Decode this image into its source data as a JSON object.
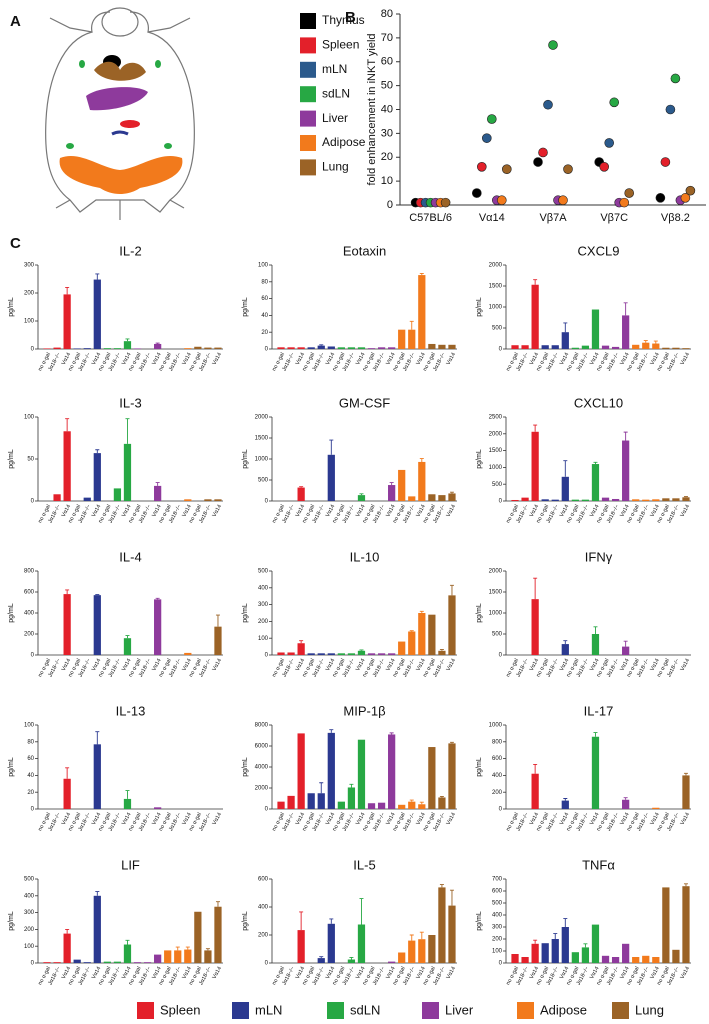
{
  "panel_labels": [
    "A",
    "B",
    "C"
  ],
  "legend": [
    {
      "name": "Spleen",
      "color": "#e3202a"
    },
    {
      "name": "mLN",
      "color": "#2b3990"
    },
    {
      "name": "sdLN",
      "color": "#27a844"
    },
    {
      "name": "Liver",
      "color": "#8e3a9c"
    },
    {
      "name": "Adipose",
      "color": "#f27a1c"
    },
    {
      "name": "Lung",
      "color": "#9b6326"
    }
  ],
  "chart_data": [
    {
      "type": "dot",
      "ylabel": "fold enhancement in iNKT yield",
      "categories": [
        "C57BL/6",
        "Vα14",
        "Vβ7A",
        "Vβ7C",
        "Vβ8.2"
      ],
      "ylim": [
        0,
        80
      ],
      "yticks": [
        0,
        10,
        20,
        30,
        40,
        50,
        60,
        70,
        80
      ],
      "series": [
        {
          "name": "Thymus",
          "color": "#000000",
          "values": [
            1,
            5,
            18,
            18,
            3
          ]
        },
        {
          "name": "Spleen",
          "color": "#e3202a",
          "values": [
            1,
            16,
            22,
            16,
            18
          ]
        },
        {
          "name": "mLN",
          "color": "#2b5a8c",
          "values": [
            1,
            28,
            42,
            26,
            40
          ]
        },
        {
          "name": "sdLN",
          "color": "#27a844",
          "values": [
            1,
            36,
            67,
            43,
            53
          ]
        },
        {
          "name": "Liver",
          "color": "#8e3a9c",
          "values": [
            1,
            2,
            2,
            1,
            2
          ]
        },
        {
          "name": "Adipose",
          "color": "#f27a1c",
          "values": [
            1,
            2,
            2,
            1,
            3
          ]
        },
        {
          "name": "Lung",
          "color": "#9b6326",
          "values": [
            1,
            15,
            15,
            5,
            6
          ]
        }
      ]
    },
    {
      "type": "bar",
      "title": "IL-2",
      "ylabel": "pg/mL",
      "ylim": [
        0,
        300
      ],
      "yticks": [
        0,
        100,
        200,
        300
      ],
      "categories": [
        "no α-gal",
        "Jα18−/−",
        "Vα14",
        "no α-gal",
        "Jα18−/−",
        "Vα14",
        "no α-gal",
        "Jα18−/−",
        "Vα14",
        "no α-gal",
        "Jα18−/−",
        "Vα14",
        "no α-gal",
        "Jα18−/−",
        "Vα14",
        "no α-gal",
        "Jα18−/−",
        "Vα14"
      ],
      "values": [
        2,
        5,
        195,
        2,
        3,
        248,
        3,
        3,
        28,
        2,
        0,
        18,
        0,
        0,
        3,
        8,
        5,
        5
      ],
      "errors": [
        0,
        0,
        25,
        0,
        0,
        20,
        0,
        0,
        8,
        0,
        0,
        3,
        0,
        0,
        0,
        0,
        0,
        0
      ]
    },
    {
      "type": "bar",
      "title": "Eotaxin",
      "ylabel": "pg/mL",
      "ylim": [
        0,
        100
      ],
      "yticks": [
        0,
        20,
        40,
        60,
        80,
        100
      ],
      "categories": [
        "no α-gal",
        "Jα18−/−",
        "Vα14",
        "no α-gal",
        "Jα18−/−",
        "Vα14",
        "no α-gal",
        "Jα18−/−",
        "Vα14",
        "no α-gal",
        "Jα18−/−",
        "Vα14",
        "no α-gal",
        "Jα18−/−",
        "Vα14",
        "no α-gal",
        "Jα18−/−",
        "Vα14"
      ],
      "values": [
        2,
        2,
        2,
        2,
        4,
        3,
        2,
        2,
        2,
        1,
        2,
        2,
        23,
        23,
        88,
        6,
        5,
        5
      ],
      "errors": [
        0,
        0,
        0,
        0,
        1,
        0,
        0,
        0,
        0,
        0,
        0,
        0,
        0,
        10,
        2,
        0,
        0,
        0
      ]
    },
    {
      "type": "bar",
      "title": "CXCL9",
      "ylabel": "pg/mL",
      "ylim": [
        0,
        2000
      ],
      "yticks": [
        0,
        500,
        1000,
        1500,
        2000
      ],
      "categories": [
        "no α-gal",
        "Jα18−/−",
        "Vα14",
        "no α-gal",
        "Jα18−/−",
        "Vα14",
        "no α-gal",
        "Jα18−/−",
        "Vα14",
        "no α-gal",
        "Jα18−/−",
        "Vα14",
        "no α-gal",
        "Jα18−/−",
        "Vα14",
        "no α-gal",
        "Jα18−/−",
        "Vα14"
      ],
      "values": [
        90,
        90,
        1530,
        90,
        90,
        400,
        30,
        80,
        940,
        80,
        50,
        800,
        100,
        150,
        130,
        30,
        30,
        20
      ],
      "errors": [
        0,
        0,
        120,
        0,
        0,
        220,
        0,
        0,
        0,
        0,
        0,
        300,
        0,
        50,
        60,
        0,
        0,
        0
      ]
    },
    {
      "type": "bar",
      "title": "IL-3",
      "ylabel": "pg/mL",
      "ylim": [
        0,
        100
      ],
      "yticks": [
        0,
        50,
        100
      ],
      "categories": [
        "no α-gal",
        "Jα18−/−",
        "Vα14",
        "no α-gal",
        "Jα18−/−",
        "Vα14",
        "no α-gal",
        "Jα18−/−",
        "Vα14",
        "no α-gal",
        "Jα18−/−",
        "Vα14",
        "no α-gal",
        "Jα18−/−",
        "Vα14",
        "no α-gal",
        "Jα18−/−",
        "Vα14"
      ],
      "values": [
        0,
        8,
        83,
        0,
        4,
        57,
        0,
        15,
        68,
        0,
        0,
        18,
        0,
        0,
        2,
        0,
        2,
        2
      ],
      "errors": [
        0,
        0,
        15,
        0,
        0,
        4,
        0,
        0,
        30,
        0,
        0,
        4,
        0,
        0,
        0,
        0,
        0,
        0
      ]
    },
    {
      "type": "bar",
      "title": "GM-CSF",
      "ylabel": "pg/mL",
      "ylim": [
        0,
        2000
      ],
      "yticks": [
        0,
        500,
        1000,
        1500,
        2000
      ],
      "categories": [
        "no α-gal",
        "Jα18−/−",
        "Vα14",
        "no α-gal",
        "Jα18−/−",
        "Vα14",
        "no α-gal",
        "Jα18−/−",
        "Vα14",
        "no α-gal",
        "Jα18−/−",
        "Vα14",
        "no α-gal",
        "Jα18−/−",
        "Vα14",
        "no α-gal",
        "Jα18−/−",
        "Vα14"
      ],
      "values": [
        0,
        0,
        320,
        0,
        0,
        1100,
        0,
        0,
        140,
        0,
        0,
        380,
        740,
        110,
        930,
        160,
        140,
        180
      ],
      "errors": [
        0,
        0,
        20,
        0,
        0,
        350,
        0,
        0,
        30,
        0,
        0,
        60,
        0,
        0,
        80,
        0,
        0,
        30
      ]
    },
    {
      "type": "bar",
      "title": "CXCL10",
      "ylabel": "pg/mL",
      "ylim": [
        0,
        2500
      ],
      "yticks": [
        0,
        500,
        1000,
        1500,
        2000,
        2500
      ],
      "categories": [
        "no α-gal",
        "Jα18−/−",
        "Vα14",
        "no α-gal",
        "Jα18−/−",
        "Vα14",
        "no α-gal",
        "Jα18−/−",
        "Vα14",
        "no α-gal",
        "Jα18−/−",
        "Vα14",
        "no α-gal",
        "Jα18−/−",
        "Vα14",
        "no α-gal",
        "Jα18−/−",
        "Vα14"
      ],
      "values": [
        30,
        100,
        2060,
        50,
        40,
        720,
        40,
        40,
        1100,
        100,
        60,
        1800,
        50,
        40,
        50,
        80,
        80,
        110
      ],
      "errors": [
        0,
        0,
        200,
        0,
        0,
        480,
        0,
        0,
        50,
        0,
        0,
        250,
        0,
        0,
        0,
        0,
        0,
        20
      ]
    },
    {
      "type": "bar",
      "title": "IL-4",
      "ylabel": "pg/mL",
      "ylim": [
        0,
        800
      ],
      "yticks": [
        0,
        200,
        400,
        600,
        800
      ],
      "categories": [
        "no α-gal",
        "Jα18−/−",
        "Vα14",
        "no α-gal",
        "Jα18−/−",
        "Vα14",
        "no α-gal",
        "Jα18−/−",
        "Vα14",
        "no α-gal",
        "Jα18−/−",
        "Vα14",
        "no α-gal",
        "Jα18−/−",
        "Vα14",
        "no α-gal",
        "Jα18−/−",
        "Vα14"
      ],
      "values": [
        0,
        0,
        580,
        0,
        0,
        570,
        0,
        0,
        160,
        0,
        0,
        530,
        0,
        0,
        20,
        0,
        0,
        270
      ],
      "errors": [
        0,
        0,
        40,
        0,
        0,
        5,
        0,
        0,
        25,
        0,
        0,
        10,
        0,
        0,
        0,
        0,
        0,
        110
      ]
    },
    {
      "type": "bar",
      "title": "IL-10",
      "ylabel": "pg/mL",
      "ylim": [
        0,
        500
      ],
      "yticks": [
        0,
        100,
        200,
        300,
        400,
        500
      ],
      "categories": [
        "no α-gal",
        "Jα18−/−",
        "Vα14",
        "no α-gal",
        "Jα18−/−",
        "Vα14",
        "no α-gal",
        "Jα18−/−",
        "Vα14",
        "no α-gal",
        "Jα18−/−",
        "Vα14",
        "no α-gal",
        "Jα18−/−",
        "Vα14",
        "no α-gal",
        "Jα18−/−",
        "Vα14"
      ],
      "values": [
        15,
        15,
        70,
        10,
        10,
        10,
        10,
        10,
        25,
        10,
        10,
        10,
        80,
        140,
        250,
        240,
        25,
        355
      ],
      "errors": [
        0,
        0,
        15,
        0,
        0,
        0,
        0,
        0,
        5,
        0,
        0,
        0,
        0,
        5,
        10,
        0,
        8,
        60
      ]
    },
    {
      "type": "bar",
      "title": "IFNγ",
      "ylabel": "pg/mL",
      "ylim": [
        0,
        2000
      ],
      "yticks": [
        0,
        500,
        1000,
        1500,
        2000
      ],
      "categories": [
        "no α-gal",
        "Jα18−/−",
        "Vα14",
        "no α-gal",
        "Jα18−/−",
        "Vα14",
        "no α-gal",
        "Jα18−/−",
        "Vα14",
        "no α-gal",
        "Jα18−/−",
        "Vα14",
        "no α-gal",
        "Jα18−/−",
        "Vα14",
        "no α-gal",
        "Jα18−/−",
        "Vα14"
      ],
      "values": [
        0,
        0,
        1330,
        0,
        0,
        260,
        0,
        0,
        500,
        0,
        0,
        200,
        0,
        0,
        0,
        0,
        0,
        0
      ],
      "errors": [
        0,
        0,
        500,
        0,
        0,
        80,
        0,
        0,
        170,
        0,
        0,
        130,
        0,
        0,
        0,
        0,
        0,
        0
      ]
    },
    {
      "type": "bar",
      "title": "IL-13",
      "ylabel": "pg/mL",
      "ylim": [
        0,
        100
      ],
      "yticks": [
        0,
        20,
        40,
        60,
        80,
        100
      ],
      "categories": [
        "no α-gal",
        "Jα18−/−",
        "Vα14",
        "no α-gal",
        "Jα18−/−",
        "Vα14",
        "no α-gal",
        "Jα18−/−",
        "Vα14",
        "no α-gal",
        "Jα18−/−",
        "Vα14",
        "no α-gal",
        "Jα18−/−",
        "Vα14",
        "no α-gal",
        "Jα18−/−",
        "Vα14"
      ],
      "values": [
        0,
        0,
        36,
        0,
        0,
        77,
        0,
        0,
        12,
        0,
        0,
        2,
        0,
        0,
        0,
        0,
        0,
        0
      ],
      "errors": [
        0,
        0,
        13,
        0,
        0,
        15,
        0,
        0,
        10,
        0,
        0,
        0,
        0,
        0,
        0,
        0,
        0,
        0
      ]
    },
    {
      "type": "bar",
      "title": "MIP-1β",
      "ylabel": "pg/mL",
      "ylim": [
        0,
        8000
      ],
      "yticks": [
        0,
        2000,
        4000,
        6000,
        8000
      ],
      "categories": [
        "no α-gal",
        "Jα18−/−",
        "Vα14",
        "no α-gal",
        "Jα18−/−",
        "Vα14",
        "no α-gal",
        "Jα18−/−",
        "Vα14",
        "no α-gal",
        "Jα18−/−",
        "Vα14",
        "no α-gal",
        "Jα18−/−",
        "Vα14",
        "no α-gal",
        "Jα18−/−",
        "Vα14"
      ],
      "values": [
        700,
        1250,
        7200,
        1500,
        1500,
        7250,
        700,
        2050,
        6600,
        550,
        600,
        7100,
        400,
        700,
        450,
        5900,
        1100,
        6250
      ],
      "errors": [
        0,
        0,
        0,
        0,
        1000,
        300,
        0,
        300,
        0,
        0,
        0,
        150,
        0,
        150,
        200,
        0,
        100,
        100
      ]
    },
    {
      "type": "bar",
      "title": "IL-17",
      "ylabel": "pg/mL",
      "ylim": [
        0,
        1000
      ],
      "yticks": [
        0,
        200,
        400,
        600,
        800,
        1000
      ],
      "categories": [
        "no α-gal",
        "Jα18−/−",
        "Vα14",
        "no α-gal",
        "Jα18−/−",
        "Vα14",
        "no α-gal",
        "Jα18−/−",
        "Vα14",
        "no α-gal",
        "Jα18−/−",
        "Vα14",
        "no α-gal",
        "Jα18−/−",
        "Vα14",
        "no α-gal",
        "Jα18−/−",
        "Vα14"
      ],
      "values": [
        0,
        0,
        420,
        0,
        0,
        100,
        0,
        0,
        860,
        0,
        0,
        110,
        0,
        0,
        15,
        0,
        0,
        400
      ],
      "errors": [
        0,
        0,
        110,
        0,
        0,
        25,
        0,
        0,
        50,
        0,
        0,
        25,
        0,
        0,
        0,
        0,
        0,
        25
      ]
    },
    {
      "type": "bar",
      "title": "LIF",
      "ylabel": "pg/mL",
      "ylim": [
        0,
        500
      ],
      "yticks": [
        0,
        100,
        200,
        300,
        400,
        500
      ],
      "categories": [
        "no α-gal",
        "Jα18−/−",
        "Vα14",
        "no α-gal",
        "Jα18−/−",
        "Vα14",
        "no α-gal",
        "Jα18−/−",
        "Vα14",
        "no α-gal",
        "Jα18−/−",
        "Vα14",
        "no α-gal",
        "Jα18−/−",
        "Vα14",
        "no α-gal",
        "Jα18−/−",
        "Vα14"
      ],
      "values": [
        5,
        5,
        175,
        20,
        5,
        400,
        8,
        8,
        110,
        5,
        5,
        50,
        75,
        75,
        80,
        305,
        75,
        335
      ],
      "errors": [
        0,
        0,
        25,
        0,
        0,
        25,
        0,
        0,
        25,
        0,
        0,
        0,
        0,
        20,
        15,
        0,
        10,
        30
      ]
    },
    {
      "type": "bar",
      "title": "IL-5",
      "ylabel": "pg/mL",
      "ylim": [
        0,
        600
      ],
      "yticks": [
        0,
        200,
        400,
        600
      ],
      "categories": [
        "no α-gal",
        "Jα18−/−",
        "Vα14",
        "no α-gal",
        "Jα18−/−",
        "Vα14",
        "no α-gal",
        "Jα18−/−",
        "Vα14",
        "no α-gal",
        "Jα18−/−",
        "Vα14",
        "no α-gal",
        "Jα18−/−",
        "Vα14",
        "no α-gal",
        "Jα18−/−",
        "Vα14"
      ],
      "values": [
        0,
        0,
        235,
        0,
        35,
        280,
        0,
        25,
        275,
        0,
        0,
        10,
        75,
        160,
        170,
        200,
        540,
        410
      ],
      "errors": [
        0,
        0,
        130,
        0,
        10,
        35,
        0,
        15,
        185,
        0,
        0,
        0,
        0,
        40,
        50,
        0,
        20,
        110
      ]
    },
    {
      "type": "bar",
      "title": "TNFα",
      "ylabel": "pg/mL",
      "ylim": [
        0,
        700
      ],
      "yticks": [
        0,
        100,
        200,
        300,
        400,
        500,
        600,
        700
      ],
      "categories": [
        "no α-gal",
        "Jα18−/−",
        "Vα14",
        "no α-gal",
        "Jα18−/−",
        "Vα14",
        "no α-gal",
        "Jα18−/−",
        "Vα14",
        "no α-gal",
        "Jα18−/−",
        "Vα14",
        "no α-gal",
        "Jα18−/−",
        "Vα14",
        "no α-gal",
        "Jα18−/−",
        "Vα14"
      ],
      "values": [
        75,
        50,
        160,
        165,
        200,
        300,
        90,
        130,
        320,
        60,
        50,
        160,
        50,
        60,
        50,
        630,
        110,
        640
      ],
      "errors": [
        0,
        0,
        30,
        0,
        45,
        70,
        0,
        30,
        0,
        0,
        0,
        0,
        0,
        0,
        0,
        0,
        0,
        20
      ]
    }
  ]
}
